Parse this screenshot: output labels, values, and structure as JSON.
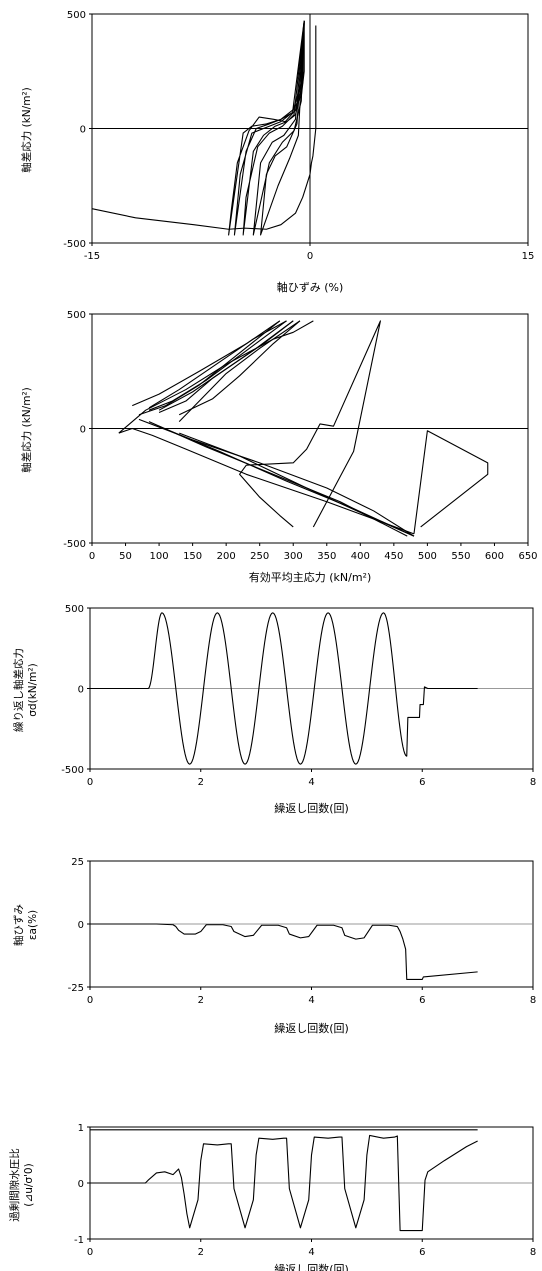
{
  "chart_data": [
    {
      "type": "line",
      "xlabel": "軸ひずみ (%)",
      "ylabel": "軸差応力 (kN/m²)",
      "xlim": [
        -15,
        15
      ],
      "ylim": [
        -500,
        500
      ],
      "xticks": [
        "-15",
        "0",
        "15"
      ],
      "yticks": [
        "500",
        "0",
        "-500"
      ],
      "series": [
        {
          "x": [
            0.4,
            0.4,
            0.2,
            0.1,
            0.0,
            -0.3,
            -0.5,
            -1,
            -2,
            -3,
            -4.5,
            -5.6,
            -8,
            -12,
            -15
          ],
          "y": [
            450,
            0,
            -120,
            -150,
            -200,
            -260,
            -300,
            -370,
            -420,
            -440,
            -435,
            -440,
            -420,
            -390,
            -350
          ]
        },
        {
          "x": [
            -0.4,
            -0.4,
            -0.6,
            -1.2,
            -2,
            -3,
            -4,
            -4.6,
            -5.6,
            -5.4,
            -5,
            -4.2,
            -3.5,
            -2.5,
            -1.7,
            -1,
            -0.6,
            -0.4
          ],
          "y": [
            470,
            250,
            140,
            80,
            40,
            20,
            10,
            -20,
            -465,
            -350,
            -150,
            -10,
            50,
            40,
            30,
            80,
            200,
            470
          ]
        },
        {
          "x": [
            -0.4,
            -1.2,
            -2,
            -3,
            -4,
            -4.8,
            -5.2,
            -4.4,
            -3.7,
            -2.8,
            -2,
            -1.2,
            -0.6,
            -0.4
          ],
          "y": [
            470,
            70,
            30,
            5,
            -20,
            -200,
            -465,
            -100,
            0,
            20,
            40,
            70,
            200,
            470
          ]
        },
        {
          "x": [
            -0.4,
            -1.1,
            -1.9,
            -2.8,
            -3.6,
            -4.4,
            -4.6,
            -3.9,
            -3.2,
            -2.4,
            -1.6,
            -1.0,
            -0.5,
            -0.4
          ],
          "y": [
            470,
            60,
            10,
            -20,
            -80,
            -300,
            -465,
            -100,
            -30,
            10,
            30,
            60,
            200,
            470
          ]
        },
        {
          "x": [
            -0.4,
            -1.0,
            -1.8,
            -2.6,
            -3.4,
            -3.9,
            -2.8,
            -1.9,
            -1.1,
            -0.6,
            -0.4
          ],
          "y": [
            470,
            40,
            -30,
            -60,
            -150,
            -465,
            -150,
            -60,
            -10,
            120,
            470
          ]
        },
        {
          "x": [
            -0.4,
            -0.9,
            -1.6,
            -2.4,
            -3,
            -3.4,
            -2.2,
            -1.4,
            -0.8,
            -0.4
          ],
          "y": [
            470,
            20,
            -80,
            -120,
            -200,
            -465,
            -250,
            -130,
            -30,
            470
          ]
        }
      ]
    },
    {
      "type": "line",
      "xlabel": "有効平均主応力 (kN/m²)",
      "ylabel": "軸差応力 (kN/m²)",
      "xlim": [
        0,
        650
      ],
      "ylim": [
        -500,
        500
      ],
      "xticks": [
        "0",
        "50",
        "100",
        "150",
        "200",
        "250",
        "300",
        "350",
        "400",
        "450",
        "500",
        "550",
        "600",
        "650"
      ],
      "yticks": [
        "500",
        "0",
        "-500"
      ],
      "series": [
        {
          "x": [
            490,
            590,
            590,
            500,
            480
          ],
          "y": [
            -430,
            -200,
            -150,
            -10,
            -460
          ]
        },
        {
          "x": [
            330,
            390,
            430,
            360,
            340,
            320,
            300,
            230,
            220,
            250,
            280,
            300
          ],
          "y": [
            -430,
            -100,
            470,
            10,
            20,
            -90,
            -150,
            -160,
            -200,
            -300,
            -380,
            -430
          ]
        },
        {
          "x": [
            480,
            350,
            230,
            140,
            90,
            60,
            40
          ],
          "y": [
            -460,
            -320,
            -200,
            -90,
            -30,
            0,
            -20
          ]
        },
        {
          "x": [
            40,
            80,
            140,
            200,
            270,
            300,
            330
          ],
          "y": [
            -20,
            80,
            170,
            280,
            390,
            420,
            470
          ]
        },
        {
          "x": [
            60,
            100,
            160,
            230,
            280
          ],
          "y": [
            100,
            150,
            250,
            370,
            470
          ]
        },
        {
          "x": [
            280,
            220,
            160,
            110,
            70
          ],
          "y": [
            470,
            330,
            190,
            100,
            60
          ]
        },
        {
          "x": [
            70,
            150,
            250,
            350,
            420,
            480
          ],
          "y": [
            40,
            -50,
            -150,
            -260,
            -360,
            -470
          ]
        },
        {
          "x": [
            85,
            130,
            180,
            240,
            290
          ],
          "y": [
            90,
            170,
            270,
            390,
            470
          ]
        },
        {
          "x": [
            290,
            230,
            170,
            120,
            85
          ],
          "y": [
            470,
            340,
            210,
            120,
            80
          ]
        },
        {
          "x": [
            85,
            170,
            270,
            370,
            470
          ],
          "y": [
            30,
            -80,
            -200,
            -320,
            -470
          ]
        },
        {
          "x": [
            100,
            150,
            200,
            260,
            300
          ],
          "y": [
            80,
            160,
            260,
            380,
            470
          ]
        },
        {
          "x": [
            300,
            240,
            180,
            140,
            100
          ],
          "y": [
            470,
            340,
            220,
            120,
            70
          ]
        },
        {
          "x": [
            100,
            190,
            290,
            390,
            480
          ],
          "y": [
            10,
            -100,
            -230,
            -350,
            -470
          ]
        },
        {
          "x": [
            130,
            180,
            220,
            270,
            310
          ],
          "y": [
            60,
            130,
            230,
            370,
            470
          ]
        },
        {
          "x": [
            310,
            250,
            200,
            160,
            130
          ],
          "y": [
            470,
            350,
            240,
            120,
            30
          ]
        },
        {
          "x": [
            130,
            220,
            320,
            410,
            480
          ],
          "y": [
            -20,
            -120,
            -260,
            -380,
            -470
          ]
        }
      ]
    },
    {
      "type": "line",
      "xlabel": "繰返し回数(回)",
      "ylabel": "繰り返し軸差応力",
      "ylabel2": "σd(kN/m²)",
      "xlim": [
        0,
        8
      ],
      "ylim": [
        -500,
        500
      ],
      "xticks": [
        "0",
        "2",
        "4",
        "6",
        "8"
      ],
      "yticks": [
        "500",
        "0",
        "-500"
      ],
      "series": [
        {
          "x": [
            0,
            1.0,
            1.05,
            1.3,
            1.8,
            2.3,
            2.8,
            3.3,
            3.8,
            4.3,
            4.8,
            5.3,
            5.72,
            5.74,
            5.8,
            5.95,
            5.96,
            6.02,
            6.04,
            6.1,
            7.0
          ],
          "y": [
            0,
            0,
            0,
            470,
            -470,
            470,
            -470,
            470,
            -470,
            470,
            -470,
            470,
            -420,
            -180,
            -180,
            -180,
            -100,
            -100,
            10,
            0,
            0
          ],
          "style": "sine-segments"
        }
      ]
    },
    {
      "type": "line",
      "xlabel": "繰返し回数(回)",
      "ylabel": "軸ひずみ",
      "ylabel2": "εa(%)",
      "xlim": [
        0,
        8
      ],
      "ylim": [
        -25,
        25
      ],
      "xticks": [
        "0",
        "2",
        "4",
        "6",
        "8"
      ],
      "yticks": [
        "25",
        "0",
        "-25"
      ],
      "series": [
        {
          "x": [
            0,
            1.2,
            1.5,
            1.55,
            1.6,
            1.7,
            1.9,
            2.0,
            2.1,
            2.4,
            2.55,
            2.6,
            2.8,
            2.95,
            3.1,
            3.4,
            3.55,
            3.6,
            3.8,
            3.95,
            4.1,
            4.4,
            4.55,
            4.6,
            4.8,
            4.95,
            5.1,
            5.4,
            5.55,
            5.6,
            5.65,
            5.7,
            5.72,
            5.9,
            6.0,
            6.02,
            7.0
          ],
          "y": [
            0,
            0,
            -0.3,
            -1,
            -2.5,
            -4,
            -4,
            -3,
            -0.3,
            -0.3,
            -1,
            -3,
            -5,
            -4.5,
            -0.5,
            -0.5,
            -1.5,
            -4,
            -5.5,
            -5,
            -0.5,
            -0.5,
            -1.5,
            -4.5,
            -6,
            -5.5,
            -0.5,
            -0.5,
            -1,
            -3,
            -6,
            -10,
            -22,
            -22,
            -22,
            -21,
            -19
          ]
        }
      ]
    },
    {
      "type": "line",
      "xlabel": "繰返し回数(回)",
      "ylabel": "過剰間隙水圧比",
      "ylabel2": "(⊿u/σ'0)",
      "xlim": [
        0,
        8
      ],
      "ylim": [
        -1,
        1
      ],
      "xticks": [
        "0",
        "2",
        "4",
        "6",
        "8"
      ],
      "yticks": [
        "1",
        "0",
        "-1"
      ],
      "hline": 0.95,
      "series": [
        {
          "x": [
            0,
            1.0,
            1.05,
            1.2,
            1.35,
            1.5,
            1.6,
            1.65,
            1.7,
            1.75,
            1.8,
            1.95,
            2.0,
            2.05,
            2.3,
            2.5,
            2.55,
            2.6,
            2.8,
            2.95,
            3.0,
            3.05,
            3.3,
            3.5,
            3.55,
            3.6,
            3.8,
            3.95,
            4.0,
            4.05,
            4.3,
            4.5,
            4.55,
            4.6,
            4.8,
            4.95,
            5.0,
            5.05,
            5.3,
            5.5,
            5.55,
            5.6,
            5.65,
            6.0,
            6.05,
            6.1,
            6.4,
            6.8,
            7.0
          ],
          "y": [
            0,
            0,
            0.05,
            0.18,
            0.2,
            0.15,
            0.25,
            0.1,
            -0.2,
            -0.55,
            -0.8,
            -0.3,
            0.4,
            0.7,
            0.68,
            0.7,
            0.7,
            -0.1,
            -0.8,
            -0.3,
            0.5,
            0.8,
            0.78,
            0.8,
            0.8,
            -0.1,
            -0.8,
            -0.3,
            0.5,
            0.82,
            0.8,
            0.82,
            0.82,
            -0.1,
            -0.8,
            -0.3,
            0.5,
            0.85,
            0.8,
            0.82,
            0.84,
            -0.85,
            -0.85,
            -0.85,
            0.05,
            0.2,
            0.4,
            0.65,
            0.75
          ]
        }
      ]
    }
  ]
}
